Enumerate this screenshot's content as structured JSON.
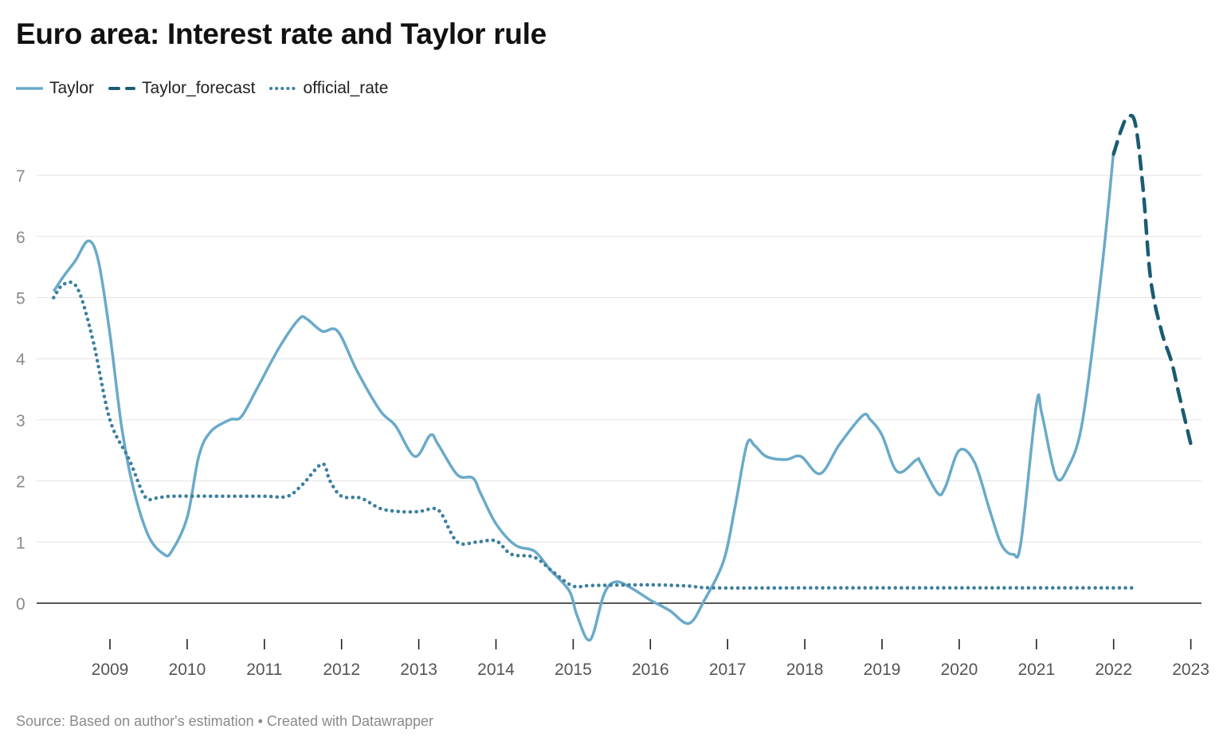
{
  "chart_data": {
    "type": "line",
    "title": "Euro area: Interest rate and Taylor rule",
    "source": "Source: Based on author's estimation • Created with Datawrapper",
    "xlim": [
      2008.2,
      2023.2
    ],
    "ylim": [
      -0.7,
      8.0
    ],
    "y_ticks": [
      0,
      1,
      2,
      3,
      4,
      5,
      6,
      7
    ],
    "x_ticks": [
      2009,
      2010,
      2011,
      2012,
      2013,
      2014,
      2015,
      2016,
      2017,
      2018,
      2019,
      2020,
      2021,
      2022,
      2023
    ],
    "grid": true,
    "legend_position": "top-left",
    "series": [
      {
        "name": "Taylor",
        "style": "solid",
        "color": "#6aaac9",
        "points": [
          [
            2008.27,
            5.1
          ],
          [
            2008.4,
            5.35
          ],
          [
            2008.55,
            5.6
          ],
          [
            2008.72,
            5.93
          ],
          [
            2008.85,
            5.6
          ],
          [
            2009.0,
            4.4
          ],
          [
            2009.15,
            2.9
          ],
          [
            2009.3,
            1.9
          ],
          [
            2009.5,
            1.1
          ],
          [
            2009.7,
            0.8
          ],
          [
            2009.8,
            0.85
          ],
          [
            2010.0,
            1.4
          ],
          [
            2010.15,
            2.4
          ],
          [
            2010.3,
            2.8
          ],
          [
            2010.55,
            3.0
          ],
          [
            2010.7,
            3.05
          ],
          [
            2010.9,
            3.5
          ],
          [
            2011.2,
            4.2
          ],
          [
            2011.45,
            4.65
          ],
          [
            2011.55,
            4.65
          ],
          [
            2011.75,
            4.45
          ],
          [
            2011.95,
            4.45
          ],
          [
            2012.2,
            3.8
          ],
          [
            2012.5,
            3.15
          ],
          [
            2012.7,
            2.9
          ],
          [
            2012.95,
            2.4
          ],
          [
            2013.15,
            2.75
          ],
          [
            2013.25,
            2.6
          ],
          [
            2013.5,
            2.1
          ],
          [
            2013.7,
            2.05
          ],
          [
            2013.8,
            1.8
          ],
          [
            2014.0,
            1.3
          ],
          [
            2014.25,
            0.95
          ],
          [
            2014.5,
            0.85
          ],
          [
            2014.7,
            0.55
          ],
          [
            2014.95,
            0.2
          ],
          [
            2015.05,
            -0.2
          ],
          [
            2015.22,
            -0.6
          ],
          [
            2015.4,
            0.15
          ],
          [
            2015.55,
            0.35
          ],
          [
            2015.75,
            0.25
          ],
          [
            2016.0,
            0.05
          ],
          [
            2016.25,
            -0.12
          ],
          [
            2016.5,
            -0.33
          ],
          [
            2016.7,
            0.05
          ],
          [
            2016.95,
            0.7
          ],
          [
            2017.1,
            1.6
          ],
          [
            2017.25,
            2.6
          ],
          [
            2017.35,
            2.58
          ],
          [
            2017.5,
            2.4
          ],
          [
            2017.75,
            2.35
          ],
          [
            2017.95,
            2.4
          ],
          [
            2018.2,
            2.12
          ],
          [
            2018.45,
            2.6
          ],
          [
            2018.75,
            3.07
          ],
          [
            2018.85,
            3.0
          ],
          [
            2019.0,
            2.75
          ],
          [
            2019.2,
            2.15
          ],
          [
            2019.45,
            2.35
          ],
          [
            2019.5,
            2.3
          ],
          [
            2019.72,
            1.8
          ],
          [
            2019.82,
            1.9
          ],
          [
            2020.0,
            2.5
          ],
          [
            2020.2,
            2.3
          ],
          [
            2020.4,
            1.5
          ],
          [
            2020.55,
            0.95
          ],
          [
            2020.7,
            0.8
          ],
          [
            2020.8,
            1.0
          ],
          [
            2021.0,
            3.25
          ],
          [
            2021.07,
            3.1
          ],
          [
            2021.25,
            2.08
          ],
          [
            2021.4,
            2.2
          ],
          [
            2021.6,
            3.0
          ],
          [
            2021.85,
            5.5
          ],
          [
            2022.0,
            7.4
          ]
        ]
      },
      {
        "name": "Taylor_forecast",
        "style": "dashed",
        "color": "#1b5b73",
        "points": [
          [
            2022.0,
            7.35
          ],
          [
            2022.1,
            7.75
          ],
          [
            2022.18,
            7.95
          ],
          [
            2022.28,
            7.85
          ],
          [
            2022.38,
            6.8
          ],
          [
            2022.48,
            5.3
          ],
          [
            2022.62,
            4.45
          ],
          [
            2022.75,
            3.95
          ],
          [
            2022.85,
            3.4
          ],
          [
            2023.0,
            2.6
          ]
        ]
      },
      {
        "name": "official_rate",
        "style": "dotted",
        "color": "#3c7f9e",
        "points": [
          [
            2008.27,
            5.0
          ],
          [
            2008.4,
            5.22
          ],
          [
            2008.58,
            5.15
          ],
          [
            2008.78,
            4.3
          ],
          [
            2009.0,
            3.0
          ],
          [
            2009.25,
            2.35
          ],
          [
            2009.45,
            1.75
          ],
          [
            2009.6,
            1.72
          ],
          [
            2009.8,
            1.75
          ],
          [
            2010.5,
            1.75
          ],
          [
            2011.0,
            1.75
          ],
          [
            2011.3,
            1.75
          ],
          [
            2011.5,
            1.95
          ],
          [
            2011.75,
            2.28
          ],
          [
            2011.85,
            2.0
          ],
          [
            2012.0,
            1.75
          ],
          [
            2012.25,
            1.72
          ],
          [
            2012.5,
            1.55
          ],
          [
            2012.75,
            1.5
          ],
          [
            2013.0,
            1.5
          ],
          [
            2013.2,
            1.55
          ],
          [
            2013.3,
            1.45
          ],
          [
            2013.5,
            1.0
          ],
          [
            2013.75,
            1.0
          ],
          [
            2014.0,
            1.02
          ],
          [
            2014.2,
            0.8
          ],
          [
            2014.5,
            0.75
          ],
          [
            2014.75,
            0.5
          ],
          [
            2015.0,
            0.28
          ],
          [
            2015.25,
            0.29
          ],
          [
            2016.0,
            0.3
          ],
          [
            2016.5,
            0.28
          ],
          [
            2016.8,
            0.25
          ],
          [
            2018.0,
            0.25
          ],
          [
            2019.0,
            0.25
          ],
          [
            2020.0,
            0.25
          ],
          [
            2021.0,
            0.25
          ],
          [
            2022.25,
            0.25
          ]
        ]
      }
    ]
  }
}
